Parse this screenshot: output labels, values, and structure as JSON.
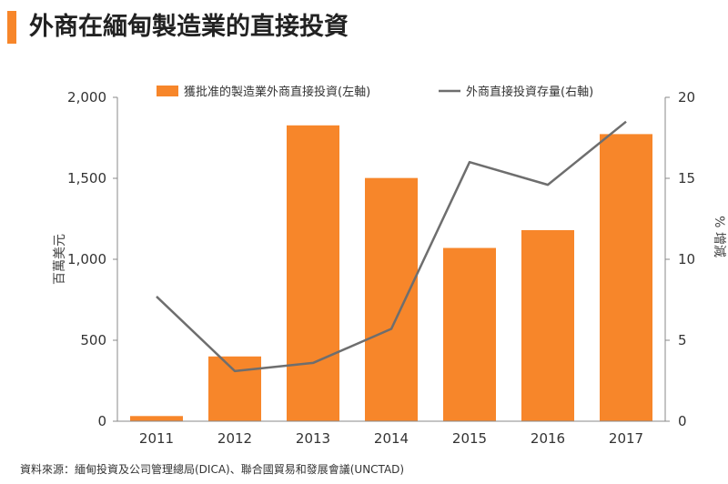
{
  "page": {
    "title": "外商在緬甸製造業的直接投資",
    "source": "資料來源：緬甸投資及公司管理總局(DICA)、聯合國貿易和發展會議(UNCTAD)"
  },
  "colors": {
    "accent": "#f7862a",
    "bar": "#f7862a",
    "line": "#6e6e6e",
    "axis": "#888888"
  },
  "chart_data": {
    "type": "bar",
    "categories": [
      "2011",
      "2012",
      "2013",
      "2014",
      "2015",
      "2016",
      "2017"
    ],
    "series": [
      {
        "name": "獲批准的製造業外商直接投資(左軸)",
        "type": "bar",
        "axis": "left",
        "values": [
          32,
          400,
          1827,
          1502,
          1070,
          1180,
          1773
        ]
      },
      {
        "name": "外商直接投資存量(右軸)",
        "type": "line",
        "axis": "right",
        "values": [
          7.7,
          3.1,
          3.6,
          5.7,
          16.0,
          14.6,
          18.5
        ]
      }
    ],
    "ylabel_left": "百萬美元",
    "ylabel_right": "% 增減",
    "ylim_left": [
      0,
      2000
    ],
    "ylim_right": [
      0,
      20
    ],
    "yticks_left": [
      "0",
      "500",
      "1,000",
      "1,500",
      "2,000"
    ],
    "yticks_right": [
      "0",
      "5",
      "10",
      "15",
      "20"
    ],
    "legend_position": "top",
    "grid": false
  }
}
